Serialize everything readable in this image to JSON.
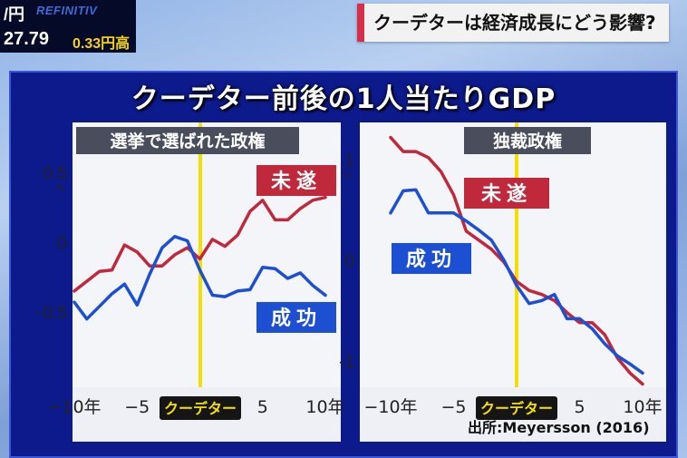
{
  "ticker": {
    "currency": "/円",
    "source": "REFINITIV",
    "rate": "27.79",
    "change": "0.33円高"
  },
  "headline": "クーデターは経済成長にどう影響?",
  "title": "クーデター前後の1人当たりGDP",
  "source_note": "出所:Meyersson (2016)",
  "colors": {
    "failed": "#c0283c",
    "success": "#1d4fd2",
    "coup_line": "#f4e000"
  },
  "chart_data": [
    {
      "type": "line",
      "title": "選挙で選ばれた政権",
      "x": [
        -10,
        -9,
        -8,
        -7,
        -6,
        -5,
        -4,
        -3,
        -2,
        -1,
        0,
        1,
        2,
        3,
        4,
        5,
        6,
        7,
        8,
        9,
        10
      ],
      "series": [
        {
          "name": "未遂",
          "values": [
            -0.35,
            -0.28,
            -0.21,
            -0.2,
            -0.02,
            -0.07,
            -0.17,
            -0.17,
            -0.09,
            -0.04,
            -0.12,
            0.02,
            -0.03,
            0.05,
            0.22,
            0.3,
            0.16,
            0.16,
            0.24,
            0.3,
            0.32
          ]
        },
        {
          "name": "成功",
          "values": [
            -0.43,
            -0.55,
            -0.46,
            -0.37,
            -0.3,
            -0.45,
            -0.23,
            -0.04,
            0.04,
            0.01,
            -0.2,
            -0.38,
            -0.39,
            -0.35,
            -0.34,
            -0.18,
            -0.19,
            -0.26,
            -0.22,
            -0.31,
            -0.38
          ]
        }
      ],
      "xticks": [
        {
          "v": -10,
          "label": "−10年"
        },
        {
          "v": -5,
          "label": "−5"
        },
        {
          "v": 5,
          "label": "5"
        },
        {
          "v": 10,
          "label": "10年"
        }
      ],
      "yticks": [
        {
          "v": 0.5,
          "label": "0.5"
        },
        {
          "v": 0,
          "label": "0"
        },
        {
          "v": -0.5,
          "label": "-0.5"
        }
      ],
      "yunit": "%",
      "ylim": [
        -1.05,
        0.75
      ],
      "xlim": [
        -10,
        10
      ],
      "coup_label": "クーデター",
      "grid": false
    },
    {
      "type": "line",
      "title": "独裁政権",
      "x": [
        -10,
        -9,
        -8,
        -7,
        -6,
        -5,
        -4,
        -3,
        -2,
        -1,
        0,
        1,
        2,
        3,
        4,
        5,
        6,
        7,
        8,
        9,
        10
      ],
      "series": [
        {
          "name": "未遂",
          "values": [
            1.22,
            1.08,
            1.08,
            1.02,
            0.88,
            0.65,
            0.29,
            0.2,
            0.11,
            -0.02,
            -0.21,
            -0.3,
            -0.34,
            -0.4,
            -0.52,
            -0.62,
            -0.62,
            -0.74,
            -0.97,
            -1.12,
            -1.23
          ]
        },
        {
          "name": "成功",
          "values": [
            0.47,
            0.69,
            0.7,
            0.47,
            0.47,
            0.47,
            0.39,
            0.3,
            0.2,
            0.0,
            -0.25,
            -0.43,
            -0.4,
            -0.34,
            -0.58,
            -0.58,
            -0.68,
            -0.83,
            -0.95,
            -1.03,
            -1.12
          ]
        }
      ],
      "xticks": [
        {
          "v": -10,
          "label": "−10年"
        },
        {
          "v": -5,
          "label": "−5"
        },
        {
          "v": 5,
          "label": "5"
        },
        {
          "v": 10,
          "label": "10年"
        }
      ],
      "yticks": [
        {
          "v": 1,
          "label": "1"
        },
        {
          "v": 0,
          "label": "0"
        },
        {
          "v": -1,
          "label": "-1"
        }
      ],
      "yunit": "%",
      "ylim": [
        -1.45,
        1.45
      ],
      "xlim": [
        -10,
        10
      ],
      "coup_label": "クーデター",
      "grid": false
    }
  ]
}
